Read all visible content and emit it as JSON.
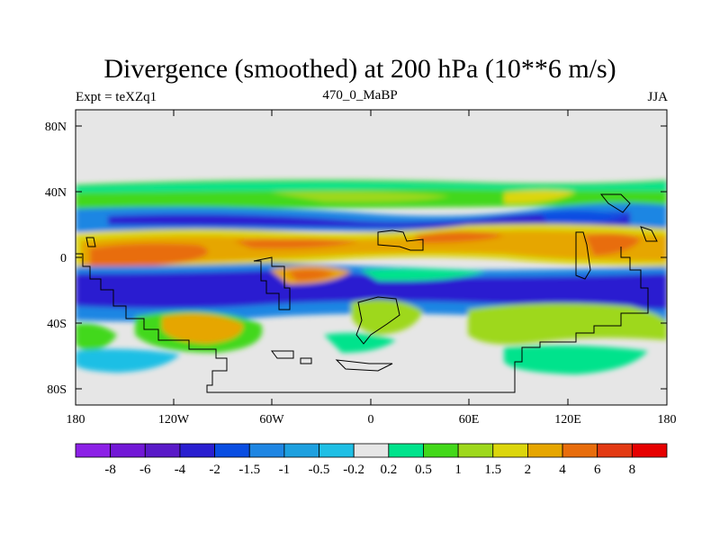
{
  "title": "Divergence (smoothed) at 200 hPa (10**6 m/s)",
  "subtitle_left": "Expt = teXZq1",
  "subtitle_center": "470_0_MaBP",
  "subtitle_right": "JJA",
  "axes": {
    "x_ticks": [
      "180",
      "120W",
      "60W",
      "0",
      "60E",
      "120E",
      "180"
    ],
    "y_ticks": [
      "80N",
      "40N",
      "0",
      "40S",
      "80S"
    ]
  },
  "colorbar": {
    "colors": [
      "#8c21e6",
      "#7218d6",
      "#5a1ac8",
      "#2a1fd0",
      "#0a4ee2",
      "#1f86e3",
      "#1ea0df",
      "#1fbfe5",
      "#e6e6e6",
      "#00e38c",
      "#43d81a",
      "#9ed81d",
      "#dcd60c",
      "#e6a600",
      "#e86d0c",
      "#e33a13",
      "#e60000"
    ],
    "labels": [
      "-8",
      "-6",
      "-4",
      "-2",
      "-1.5",
      "-1",
      "-0.5",
      "-0.2",
      "0.2",
      "0.5",
      "1",
      "1.5",
      "2",
      "4",
      "6",
      "8"
    ]
  }
}
